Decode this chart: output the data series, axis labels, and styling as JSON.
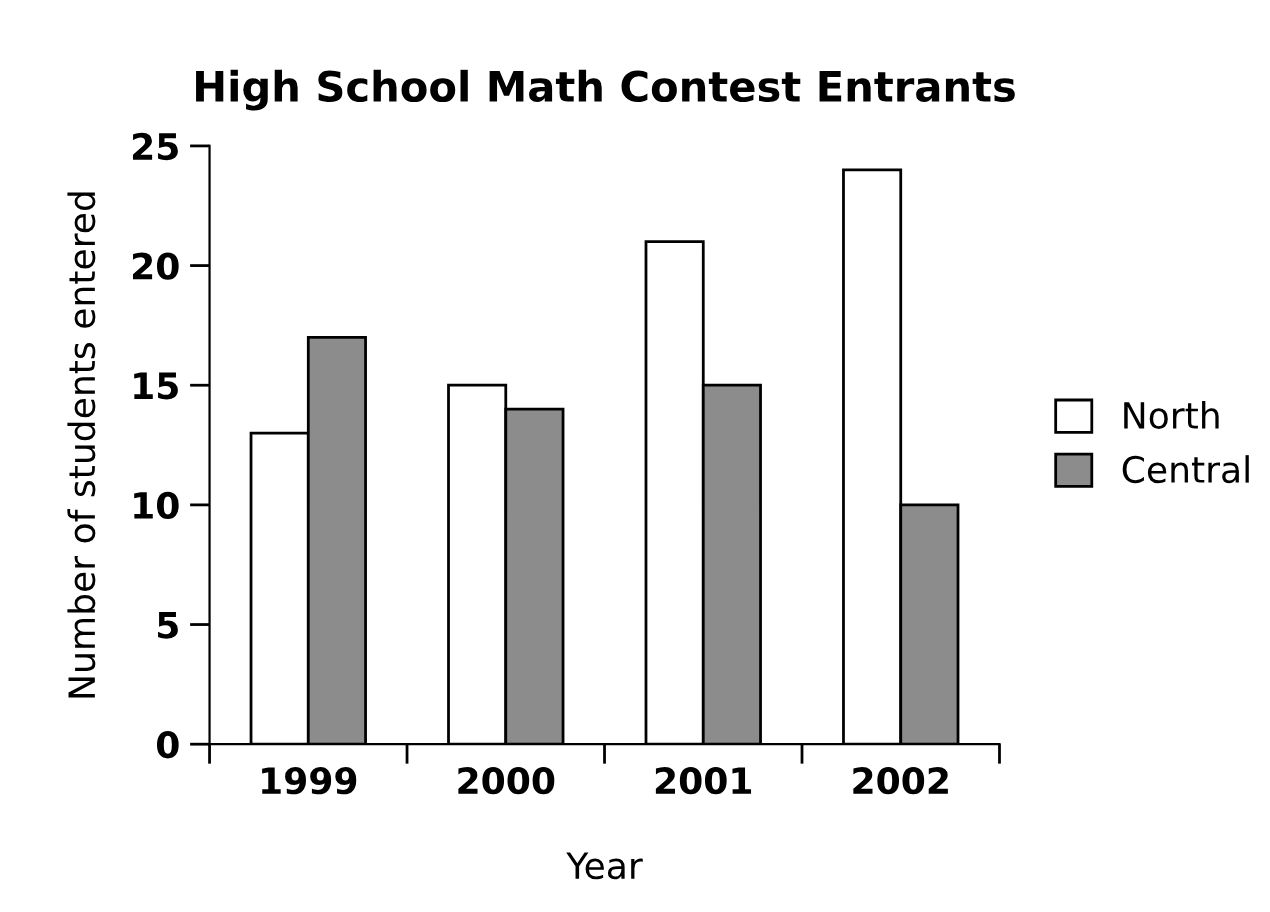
{
  "chart_data": {
    "type": "bar",
    "title": "High School Math Contest Entrants",
    "xlabel": "Year",
    "ylabel": "Number of students entered",
    "categories": [
      "1999",
      "2000",
      "2001",
      "2002"
    ],
    "series": [
      {
        "name": "North",
        "color": "#ffffff",
        "values": [
          13,
          15,
          21,
          24
        ]
      },
      {
        "name": "Central",
        "color": "#8c8c8c",
        "values": [
          17,
          14,
          15,
          10
        ]
      }
    ],
    "ylim": [
      0,
      25
    ],
    "yticks": [
      0,
      5,
      10,
      15,
      20,
      25
    ],
    "grid": false,
    "legend": "right"
  }
}
